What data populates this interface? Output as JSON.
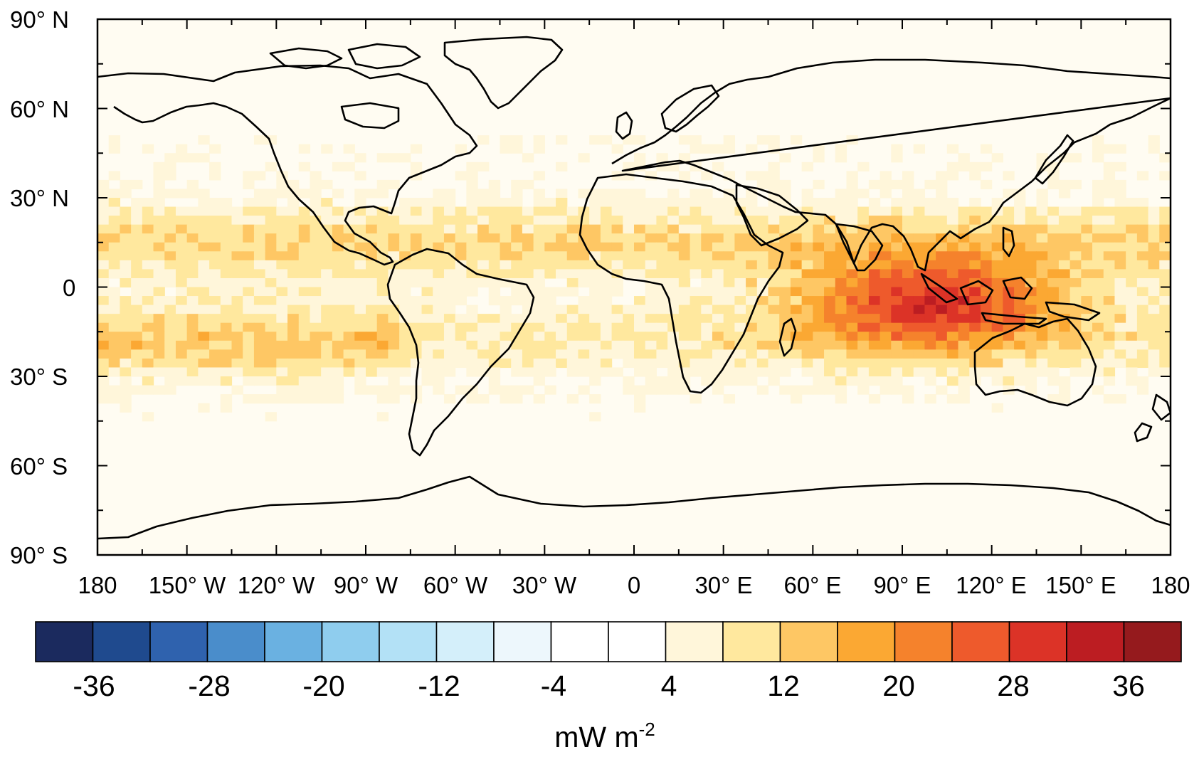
{
  "map": {
    "lat_labels": [
      "90° N",
      "60° N",
      "30° N",
      "0",
      "30° S",
      "60° S",
      "90° S"
    ],
    "lon_labels": [
      "180",
      "150° W",
      "120° W",
      "90° W",
      "60° W",
      "30° W",
      "0",
      "30° E",
      "60° E",
      "90° E",
      "120° E",
      "150° E",
      "180"
    ],
    "lat_range": [
      -90,
      90
    ],
    "lon_range": [
      -180,
      180
    ],
    "field_description_units": "mW m-2",
    "coastlines": "black",
    "field_features": [
      {
        "lon": [
          60,
          150
        ],
        "lat": [
          -25,
          20
        ],
        "level": 32
      },
      {
        "lon": [
          -180,
          -90
        ],
        "lat": [
          -30,
          -10
        ],
        "level": 20
      },
      {
        "lon": [
          -180,
          -100
        ],
        "lat": [
          5,
          25
        ],
        "level": 14
      }
    ]
  },
  "colorbar": {
    "tick_labels": [
      "-36",
      "-28",
      "-20",
      "-12",
      "-4",
      "4",
      "12",
      "20",
      "28",
      "36"
    ],
    "unit_base": "mW m",
    "unit_exponent": "-2",
    "colors": [
      "#1b2a5e",
      "#1f4a8e",
      "#2f62ae",
      "#4a8dcb",
      "#6ab1e1",
      "#8fcdee",
      "#b3e1f6",
      "#d4effa",
      "#edf7fc",
      "#ffffff",
      "#ffffff",
      "#fff6da",
      "#ffe89e",
      "#fec764",
      "#fba833",
      "#f5822c",
      "#ee5a2c",
      "#dc3327",
      "#bc1d22",
      "#951a1d"
    ]
  }
}
